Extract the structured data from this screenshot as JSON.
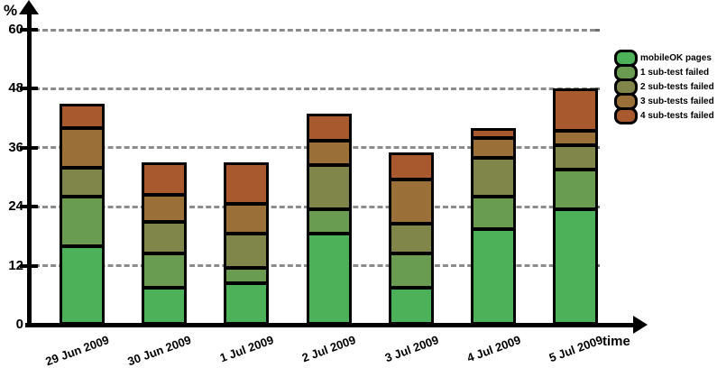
{
  "chart_data": {
    "type": "stacked-bar",
    "title": "",
    "ylabel": "%",
    "xlabel": "time",
    "categories": [
      "29 Jun 2009",
      "30 Jun 2009",
      "1 Jul 2009",
      "2 Jul 2009",
      "3 Jul 2009",
      "4 Jul 2009",
      "5 Jul 2009"
    ],
    "series": [
      {
        "name": "mobileOK pages",
        "color": "#4CB159",
        "values": [
          16,
          7.5,
          8.5,
          18.5,
          7.5,
          19.5,
          23.5
        ]
      },
      {
        "name": "1 sub-test failed",
        "color": "#699C51",
        "values": [
          10,
          7,
          3,
          5,
          7,
          6.5,
          8
        ]
      },
      {
        "name": "2 sub-tests failed",
        "color": "#808549",
        "values": [
          6,
          6.5,
          7,
          9,
          6,
          8,
          5
        ]
      },
      {
        "name": "3 sub-tests failed",
        "color": "#9A7038",
        "values": [
          8,
          5.5,
          6,
          5,
          9,
          4,
          3
        ]
      },
      {
        "name": "4 sub-tests failed",
        "color": "#A85A2E",
        "values": [
          5,
          6.5,
          8.5,
          5.5,
          5.5,
          2,
          8.5
        ]
      }
    ],
    "totals": [
      45,
      33,
      33,
      43,
      35,
      40,
      48
    ],
    "yticks": [
      0,
      12,
      24,
      36,
      48,
      60
    ],
    "ylim": [
      0,
      64
    ],
    "grid": true,
    "grid_style": "dashed",
    "grid_color": "#8C8C8C",
    "axis_color": "#000000",
    "legend_position": "top-right"
  }
}
